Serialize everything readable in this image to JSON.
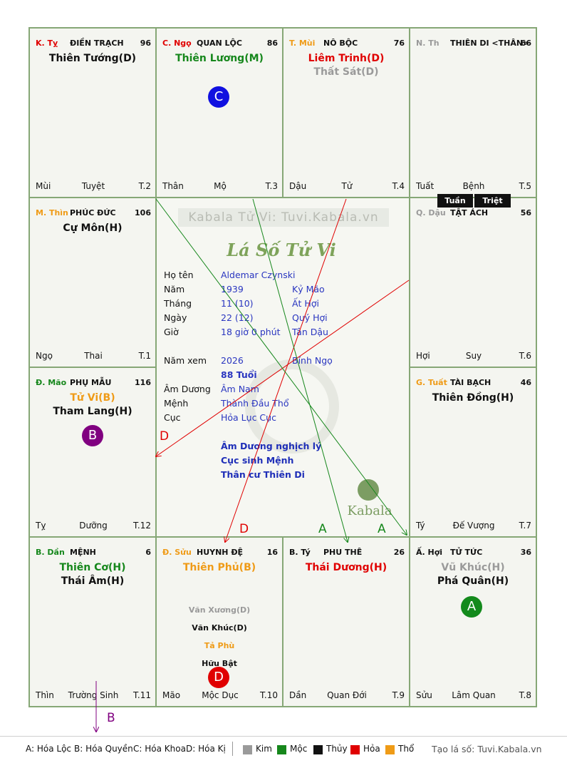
{
  "palaces": [
    {
      "id": "k-ty",
      "can": "K. Tỵ",
      "can_color": "red",
      "name": "ĐIỀN TRẠCH",
      "num": "96",
      "stars": [
        {
          "t": "Thiên Tướng(D)",
          "c": "black"
        }
      ],
      "foot": [
        "Mùi",
        "Tuyệt",
        "T.2"
      ]
    },
    {
      "id": "c-ngo",
      "can": "C. Ngọ",
      "can_color": "red",
      "name": "QUAN LỘC",
      "num": "86",
      "stars": [
        {
          "t": "Thiên Lương(M)",
          "c": "green"
        }
      ],
      "foot": [
        "Thân",
        "Mộ",
        "T.3"
      ]
    },
    {
      "id": "t-mui",
      "can": "T. Mùi",
      "can_color": "orange",
      "name": "NÔ BỘC",
      "num": "76",
      "stars": [
        {
          "t": "Liêm Trinh(D)",
          "c": "red"
        },
        {
          "t": "Thất Sát(D)",
          "c": "gray"
        }
      ],
      "foot": [
        "Dậu",
        "Tử",
        "T.4"
      ]
    },
    {
      "id": "n-than",
      "can": "N. Th",
      "can_color": "gray",
      "name": "THIÊN DI <THÂN>",
      "num": "66",
      "stars": [],
      "foot": [
        "Tuất",
        "Bệnh",
        "T.5"
      ]
    },
    {
      "id": "m-thin",
      "can": "M. Thìn",
      "can_color": "orange",
      "name": "PHÚC ĐỨC",
      "num": "106",
      "stars": [
        {
          "t": "Cự Môn(H)",
          "c": "black"
        }
      ],
      "foot": [
        "Ngọ",
        "Thai",
        "T.1"
      ]
    },
    {
      "id": "q-dau",
      "can": "Q. Dậu",
      "can_color": "gray",
      "name": "TẬT ÁCH",
      "num": "56",
      "stars": [],
      "foot": [
        "Hợi",
        "Suy",
        "T.6"
      ]
    },
    {
      "id": "d-mao",
      "can": "Đ. Mão",
      "can_color": "green",
      "name": "PHỤ MẪU",
      "num": "116",
      "stars": [
        {
          "t": "Tử Vi(B)",
          "c": "orange"
        },
        {
          "t": "Tham Lang(H)",
          "c": "black"
        }
      ],
      "foot": [
        "Tỵ",
        "Dưỡng",
        "T.12"
      ]
    },
    {
      "id": "g-tuat",
      "can": "G. Tuất",
      "can_color": "orange",
      "name": "TÀI BẠCH",
      "num": "46",
      "stars": [
        {
          "t": "Thiên Đồng(H)",
          "c": "black"
        }
      ],
      "foot": [
        "Tý",
        "Đế Vượng",
        "T.7"
      ]
    },
    {
      "id": "b-dan",
      "can": "B. Dần",
      "can_color": "green",
      "name": "MỆNH",
      "num": "6",
      "stars": [
        {
          "t": "Thiên Cơ(H)",
          "c": "green"
        },
        {
          "t": "Thái Âm(H)",
          "c": "black"
        }
      ],
      "foot": [
        "Thìn",
        "Trường Sinh",
        "T.11"
      ]
    },
    {
      "id": "d-suu",
      "can": "Đ. Sửu",
      "can_color": "orange",
      "name": "HUYNH ĐỆ",
      "num": "16",
      "stars": [
        {
          "t": "Thiên Phủ(B)",
          "c": "orange"
        }
      ],
      "minor": [
        {
          "t": "Văn Xương(D)",
          "c": "gray"
        },
        {
          "t": "Văn Khúc(D)",
          "c": "black"
        },
        {
          "t": "Tả Phù",
          "c": "orange"
        },
        {
          "t": "Hữu Bật",
          "c": "black"
        }
      ],
      "foot": [
        "Mão",
        "Mộc Dục",
        "T.10"
      ]
    },
    {
      "id": "b-ty",
      "can": "B. Tý",
      "can_color": "black",
      "name": "PHU THÊ",
      "num": "26",
      "stars": [
        {
          "t": "Thái Dương(H)",
          "c": "red"
        }
      ],
      "foot": [
        "Dần",
        "Quan Đới",
        "T.9"
      ]
    },
    {
      "id": "a-hoi",
      "can": "Ấ. Hợi",
      "can_color": "black",
      "name": "TỬ TỨC",
      "num": "36",
      "stars": [
        {
          "t": "Vũ Khúc(H)",
          "c": "gray"
        },
        {
          "t": "Phá Quân(H)",
          "c": "black"
        }
      ],
      "foot": [
        "Sửu",
        "Lâm Quan",
        "T.8"
      ]
    }
  ],
  "badges": {
    "tuan": "Tuần",
    "triet": "Triệt"
  },
  "circles": [
    {
      "letter": "C",
      "color": "#1010e0"
    },
    {
      "letter": "B",
      "color": "#800080"
    },
    {
      "letter": "D",
      "color": "#e00000"
    },
    {
      "letter": "A",
      "color": "#138a1c"
    }
  ],
  "center": {
    "watermark": "Kabala Tử Vi: Tuvi.Kabala.vn",
    "title": "Lá Số Tử Vi",
    "rows": [
      {
        "k": "Họ tên",
        "v1": "Aldemar Czynski",
        "v2": ""
      },
      {
        "k": "Năm",
        "v1": "1939",
        "v2": "Kỷ Mão"
      },
      {
        "k": "Tháng",
        "v1": "11  (10)",
        "v2": "Ất Hợi"
      },
      {
        "k": "Ngày",
        "v1": "22  (12)",
        "v2": "Quý Hợi"
      },
      {
        "k": "Giờ",
        "v1": "18 giờ 0 phút",
        "v2": "Tân Dậu"
      },
      {
        "k": "Năm xem",
        "v1": "2026",
        "v2": "Bính Ngọ"
      },
      {
        "k": "",
        "v1": "88 Tuổi",
        "v2": ""
      },
      {
        "k": "Âm Dương",
        "v1": "Âm Nam",
        "v2": ""
      },
      {
        "k": "Mệnh",
        "v1": "Thành Đầu Thổ",
        "v2": ""
      },
      {
        "k": "Cục",
        "v1": "Hỏa Lục Cục",
        "v2": ""
      }
    ],
    "notes": [
      "Âm Dương nghịch lý",
      "Cục sinh Mệnh",
      "Thân cư Thiên Di"
    ],
    "logo": "Kabala"
  },
  "arrow_labels": {
    "d1": "D",
    "d2": "D",
    "a1": "A",
    "a2": "A",
    "b": "B"
  },
  "legend": {
    "a": "A: Hóa Lộc",
    "b": "B: Hóa Quyền",
    "c": "C: Hóa Khoa",
    "d": "D: Hóa Kị",
    "kim": "Kim",
    "moc": "Mộc",
    "thuy": "Thủy",
    "hoa": "Hỏa",
    "tho": "Thổ",
    "site": "Tạo lá số: Tuvi.Kabala.vn"
  }
}
